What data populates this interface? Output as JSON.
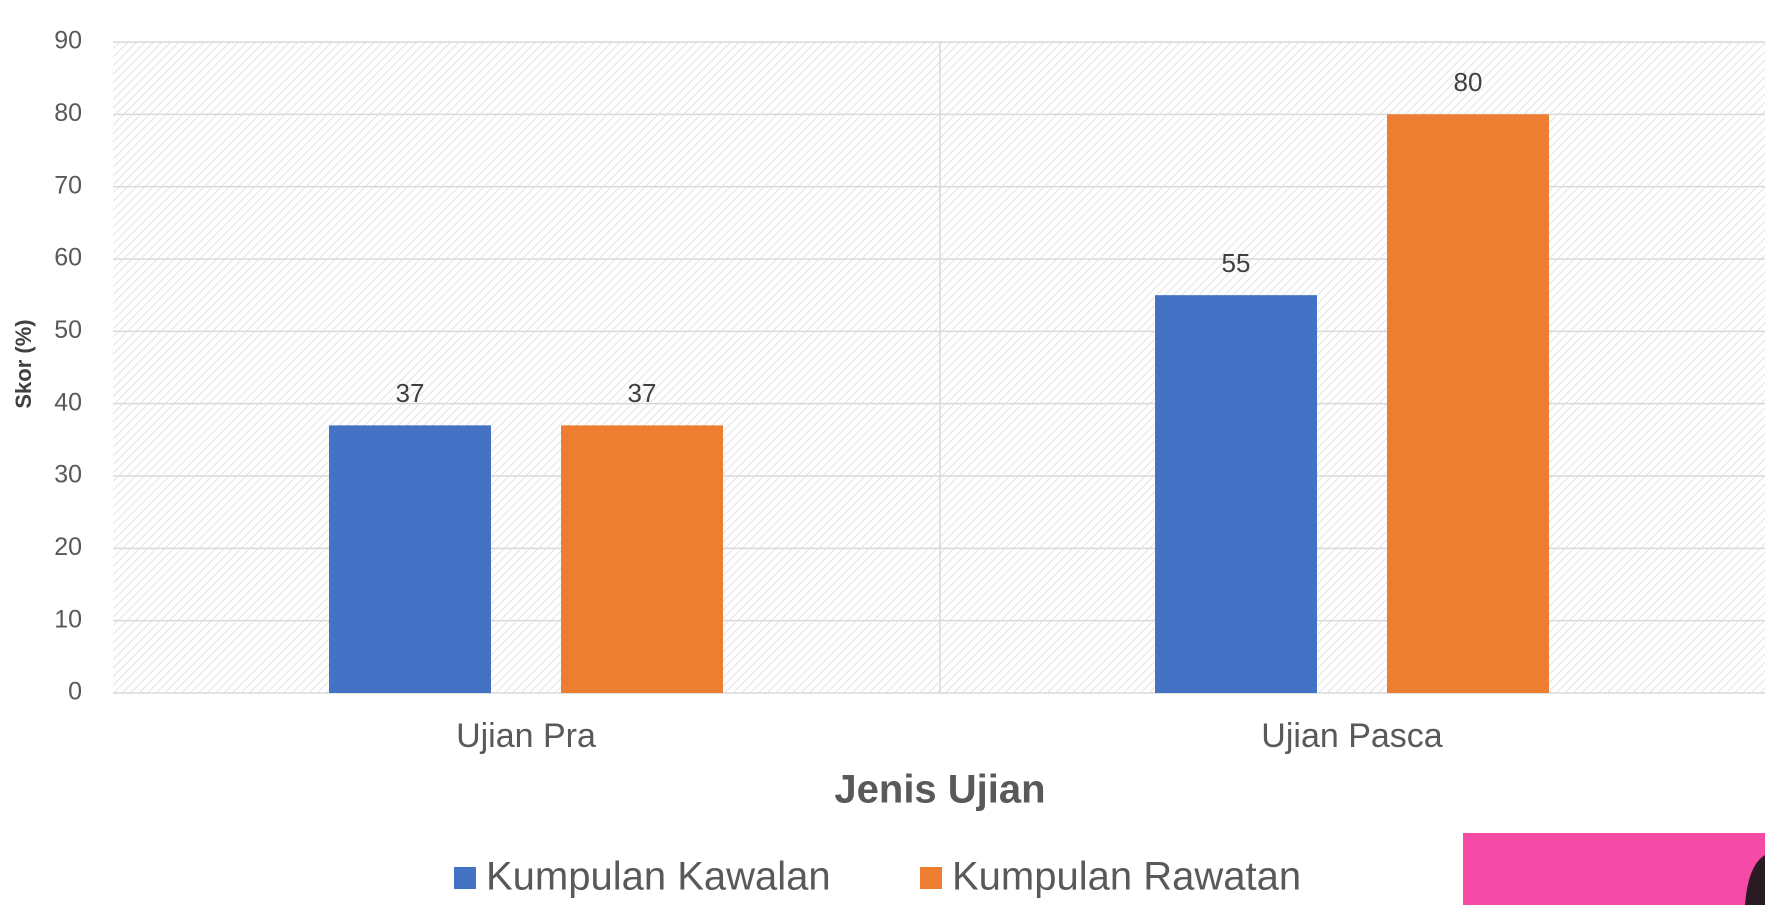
{
  "chart_data": {
    "type": "bar",
    "x_label": "Jenis Ujian",
    "y_label": "Skor (%)",
    "categories": [
      "Ujian Pra",
      "Ujian Pasca"
    ],
    "series": [
      {
        "name": "Kumpulan Kawalan",
        "color": "#4472c4",
        "values": [
          37,
          55
        ]
      },
      {
        "name": "Kumpulan Rawatan",
        "color": "#ed7d31",
        "values": [
          37,
          80
        ]
      }
    ],
    "ylim": [
      0,
      90
    ],
    "yticks": [
      0,
      10,
      20,
      30,
      40,
      50,
      60,
      70,
      80,
      90
    ],
    "grid": true
  }
}
